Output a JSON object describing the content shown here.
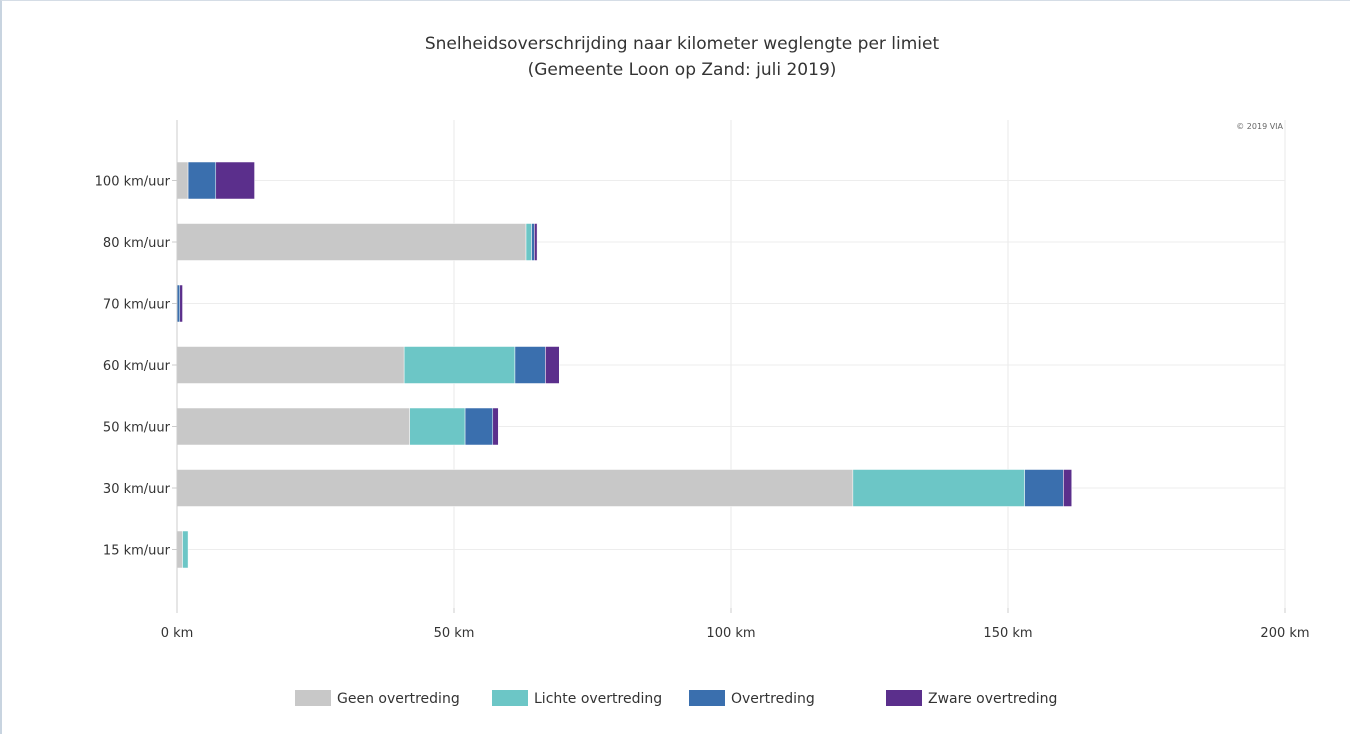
{
  "chart_data": {
    "type": "bar",
    "orientation": "horizontal",
    "stacked": true,
    "title": "Snelheidsoverschrijding naar kilometer weglengte per limiet",
    "subtitle": "(Gemeente Loon op Zand: juli 2019)",
    "credit": "© 2019 VIA",
    "categories": [
      "100 km/uur",
      "80 km/uur",
      "70 km/uur",
      "60 km/uur",
      "50 km/uur",
      "30 km/uur",
      "15 km/uur"
    ],
    "series": [
      {
        "name": "Geen overtreding",
        "color": "#c8c8c8",
        "values": [
          2,
          63,
          0,
          41,
          42,
          122,
          1
        ]
      },
      {
        "name": "Lichte overtreding",
        "color": "#6cc6c6",
        "values": [
          0,
          1,
          0,
          20,
          10,
          31,
          1
        ]
      },
      {
        "name": "Overtreding",
        "color": "#3a6fae",
        "values": [
          5,
          0.5,
          0.5,
          5.5,
          5,
          7,
          0
        ]
      },
      {
        "name": "Zware overtreding",
        "color": "#5b2f8c",
        "values": [
          7,
          0.5,
          0.5,
          2.5,
          1,
          1.5,
          0
        ]
      }
    ],
    "xaxis": {
      "ticks": [
        0,
        50,
        100,
        150,
        200
      ],
      "tick_labels": [
        "0 km",
        "50 km",
        "100 km",
        "150 km",
        "200 km"
      ],
      "range": [
        0,
        200
      ]
    },
    "grid": true,
    "legend_position": "bottom"
  }
}
